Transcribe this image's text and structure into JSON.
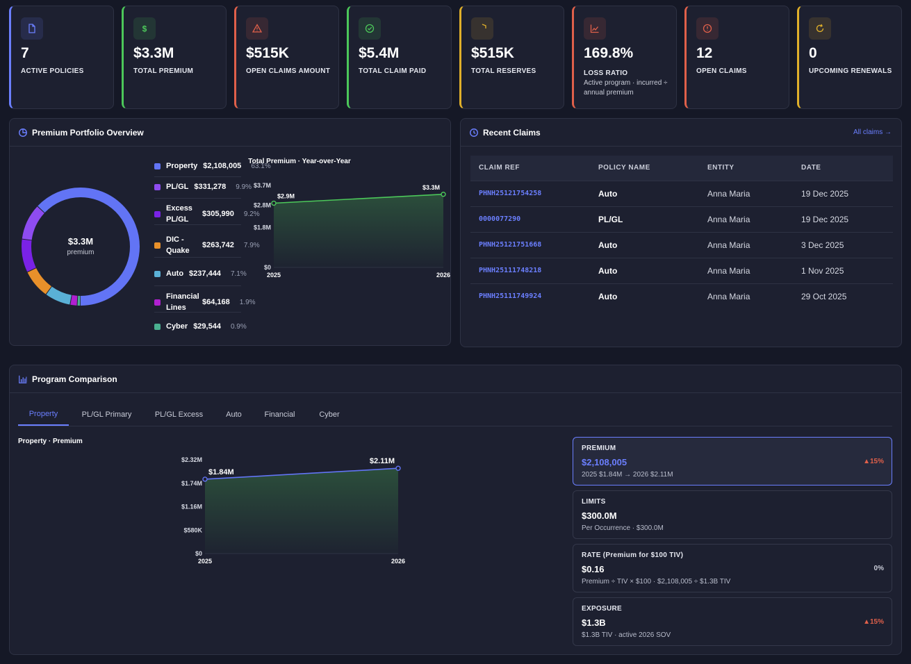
{
  "stats": [
    {
      "value": "7",
      "label": "ACTIVE POLICIES",
      "sub": "",
      "accent": "#6b7fff",
      "icon": "document-icon"
    },
    {
      "value": "$3.3M",
      "label": "TOTAL PREMIUM",
      "sub": "",
      "accent": "#4cc85a",
      "icon": "dollar-icon"
    },
    {
      "value": "$515K",
      "label": "OPEN CLAIMS AMOUNT",
      "sub": "",
      "accent": "#e0604a",
      "icon": "warning-icon"
    },
    {
      "value": "$5.4M",
      "label": "TOTAL CLAIM PAID",
      "sub": "",
      "accent": "#4cc85a",
      "icon": "check-circle-icon"
    },
    {
      "value": "$515K",
      "label": "TOTAL RESERVES",
      "sub": "",
      "accent": "#e0b02a",
      "icon": "shield-icon"
    },
    {
      "value": "169.8%",
      "label": "LOSS RATIO",
      "sub": "Active program · incurred ÷ annual premium",
      "accent": "#e0604a",
      "icon": "trend-chart-icon"
    },
    {
      "value": "12",
      "label": "OPEN CLAIMS",
      "sub": "",
      "accent": "#e0604a",
      "icon": "alert-circle-icon"
    },
    {
      "value": "0",
      "label": "UPCOMING RENEWALS",
      "sub": "",
      "accent": "#e0b02a",
      "icon": "refresh-icon"
    }
  ],
  "portfolio": {
    "title": "Premium Portfolio Overview",
    "donut_value": "$3.3M",
    "donut_caption": "premium",
    "legend": [
      {
        "name": "Property",
        "amount": "$2,108,005",
        "pct": "63.1%",
        "color": "#6274f5"
      },
      {
        "name": "PL/GL",
        "amount": "$331,278",
        "pct": "9.9%",
        "color": "#8e4cf0"
      },
      {
        "name": "Excess PL/GL",
        "amount": "$305,990",
        "pct": "9.2%",
        "color": "#7a22e6"
      },
      {
        "name": "DIC - Quake",
        "amount": "$263,742",
        "pct": "7.9%",
        "color": "#e8902a"
      },
      {
        "name": "Auto",
        "amount": "$237,444",
        "pct": "7.1%",
        "color": "#5ab0d6"
      },
      {
        "name": "Financial Lines",
        "amount": "$64,168",
        "pct": "1.9%",
        "color": "#b020d0"
      },
      {
        "name": "Cyber",
        "amount": "$29,544",
        "pct": "0.9%",
        "color": "#4ab090"
      }
    ]
  },
  "chart_data": [
    {
      "type": "pie",
      "categories": [
        "Property",
        "PL/GL",
        "Excess PL/GL",
        "DIC - Quake",
        "Auto",
        "Financial Lines",
        "Cyber"
      ],
      "values": [
        2108005,
        331278,
        305990,
        263742,
        237444,
        64168,
        29544
      ]
    },
    {
      "type": "area",
      "title": "Total Premium · Year-over-Year",
      "x": [
        "2025",
        "2026"
      ],
      "values": [
        2.9,
        3.3
      ],
      "value_labels": [
        "$2.9M",
        "$3.3M"
      ],
      "yticks": [
        "$0",
        "$1.8M",
        "$2.8M",
        "$3.7M"
      ],
      "ylim": [
        0,
        3.7
      ],
      "color": "#4cc85a"
    },
    {
      "type": "area",
      "title": "Property · Premium",
      "x": [
        "2025",
        "2026"
      ],
      "values": [
        1.84,
        2.11
      ],
      "value_labels": [
        "$1.84M",
        "$2.11M"
      ],
      "yticks": [
        "$0",
        "$580K",
        "$1.16M",
        "$1.74M",
        "$2.32M"
      ],
      "ylim": [
        0,
        2.32
      ],
      "color": "#6274f5"
    }
  ],
  "claims": {
    "title": "Recent Claims",
    "link": "All claims →",
    "headers": [
      "CLAIM REF",
      "POLICY NAME",
      "ENTITY",
      "DATE"
    ],
    "rows": [
      [
        "PHNH25121754258",
        "Auto",
        "Anna Maria",
        "19 Dec 2025"
      ],
      [
        "0000077290",
        "PL/GL",
        "Anna Maria",
        "19 Dec 2025"
      ],
      [
        "PHNH25121751668",
        "Auto",
        "Anna Maria",
        "3 Dec 2025"
      ],
      [
        "PHNH25111748218",
        "Auto",
        "Anna Maria",
        "1 Nov 2025"
      ],
      [
        "PHNH25111749924",
        "Auto",
        "Anna Maria",
        "29 Oct 2025"
      ]
    ]
  },
  "comparison": {
    "title": "Program Comparison",
    "tabs": [
      "Property",
      "PL/GL Primary",
      "PL/GL Excess",
      "Auto",
      "Financial",
      "Cyber"
    ],
    "active_tab": "Property",
    "metrics": [
      {
        "title": "PREMIUM",
        "value": "$2,108,005",
        "sub": "2025 $1.84M → 2026 $2.11M",
        "change": "▲15%",
        "change_color": "#e0604a"
      },
      {
        "title": "LIMITS",
        "value": "$300.0M",
        "sub": "Per Occurrence · $300.0M",
        "change": "",
        "change_color": "#c9ccd8"
      },
      {
        "title": "RATE (Premium for $100 TIV)",
        "value": "$0.16",
        "sub": "Premium ÷ TIV × $100 · $2,108,005 ÷ $1.3B TIV",
        "change": "0%",
        "change_color": "#c9ccd8"
      },
      {
        "title": "EXPOSURE",
        "value": "$1.3B",
        "sub": "$1.3B TIV · active 2026 SOV",
        "change": "▲15%",
        "change_color": "#e0604a"
      }
    ]
  }
}
